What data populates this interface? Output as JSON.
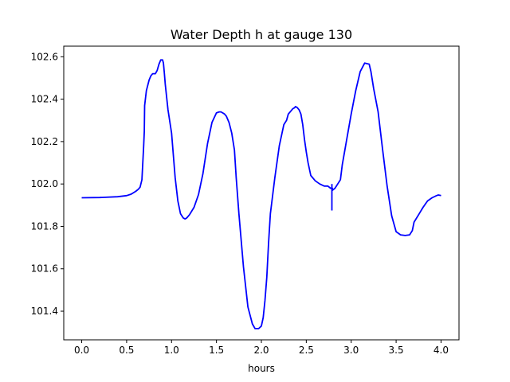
{
  "chart_data": {
    "type": "line",
    "title": "Water Depth h at gauge 130",
    "xlabel": "hours",
    "ylabel": "",
    "xlim": [
      -0.2,
      4.2
    ],
    "ylim": [
      101.265,
      102.65
    ],
    "xticks": [
      0.0,
      0.5,
      1.0,
      1.5,
      2.0,
      2.5,
      3.0,
      3.5,
      4.0
    ],
    "xtick_labels": [
      "0.0",
      "0.5",
      "1.0",
      "1.5",
      "2.0",
      "2.5",
      "3.0",
      "3.5",
      "4.0"
    ],
    "yticks": [
      101.4,
      101.6,
      101.8,
      102.0,
      102.2,
      102.4,
      102.6
    ],
    "ytick_labels": [
      "101.4",
      "101.6",
      "101.8",
      "102.0",
      "102.2",
      "102.4",
      "102.6"
    ],
    "grid": false,
    "series": [
      {
        "color": "#0000ff",
        "x": [
          0.0,
          0.2,
          0.4,
          0.5,
          0.55,
          0.6,
          0.63,
          0.65,
          0.67,
          0.69,
          0.697,
          0.7,
          0.72,
          0.75,
          0.77,
          0.79,
          0.8,
          0.82,
          0.84,
          0.86,
          0.88,
          0.9,
          0.91,
          0.92,
          0.93,
          0.96,
          1.0,
          1.04,
          1.07,
          1.1,
          1.13,
          1.15,
          1.17,
          1.2,
          1.25,
          1.3,
          1.35,
          1.4,
          1.45,
          1.5,
          1.53,
          1.55,
          1.57,
          1.59,
          1.61,
          1.64,
          1.67,
          1.7,
          1.72,
          1.75,
          1.8,
          1.85,
          1.9,
          1.93,
          1.97,
          2.0,
          2.02,
          2.04,
          2.06,
          2.08,
          2.1,
          2.15,
          2.2,
          2.25,
          2.28,
          2.3,
          2.33,
          2.35,
          2.37,
          2.38,
          2.4,
          2.42,
          2.44,
          2.46,
          2.48,
          2.5,
          2.52,
          2.55,
          2.6,
          2.65,
          2.7,
          2.74,
          2.77,
          2.79,
          2.79,
          2.79,
          2.82,
          2.85,
          2.88,
          2.9,
          2.95,
          3.0,
          3.05,
          3.1,
          3.15,
          3.2,
          3.22,
          3.25,
          3.3,
          3.35,
          3.4,
          3.45,
          3.5,
          3.55,
          3.6,
          3.65,
          3.68,
          3.7,
          3.75,
          3.8,
          3.85,
          3.9,
          3.95,
          3.97,
          4.0
        ],
        "y": [
          101.935,
          101.936,
          101.94,
          101.945,
          101.952,
          101.965,
          101.975,
          101.985,
          102.02,
          102.18,
          102.25,
          102.37,
          102.44,
          102.49,
          102.51,
          102.52,
          102.52,
          102.52,
          102.535,
          102.565,
          102.585,
          102.585,
          102.57,
          102.52,
          102.47,
          102.35,
          102.24,
          102.03,
          101.92,
          101.86,
          101.84,
          101.835,
          101.84,
          101.855,
          101.89,
          101.95,
          102.05,
          102.19,
          102.29,
          102.335,
          102.34,
          102.34,
          102.335,
          102.33,
          102.32,
          102.29,
          102.24,
          102.16,
          102.03,
          101.86,
          101.61,
          101.42,
          101.34,
          101.318,
          101.318,
          101.33,
          101.37,
          101.45,
          101.56,
          101.72,
          101.86,
          102.03,
          102.18,
          102.28,
          102.3,
          102.33,
          102.345,
          102.355,
          102.36,
          102.365,
          102.36,
          102.35,
          102.33,
          102.28,
          102.21,
          102.15,
          102.1,
          102.04,
          102.015,
          102.0,
          101.99,
          101.99,
          101.98,
          101.98,
          101.975,
          101.97,
          101.98,
          102.0,
          102.02,
          102.09,
          102.21,
          102.33,
          102.44,
          102.53,
          102.57,
          102.565,
          102.53,
          102.45,
          102.34,
          102.16,
          101.99,
          101.85,
          101.775,
          101.76,
          101.757,
          101.76,
          101.78,
          101.82,
          101.855,
          101.89,
          101.92,
          101.935,
          101.945,
          101.948,
          101.945
        ]
      },
      {
        "color": "#0000ff",
        "x": [
          2.785,
          2.785
        ],
        "y": [
          102.0,
          101.875
        ]
      }
    ]
  }
}
